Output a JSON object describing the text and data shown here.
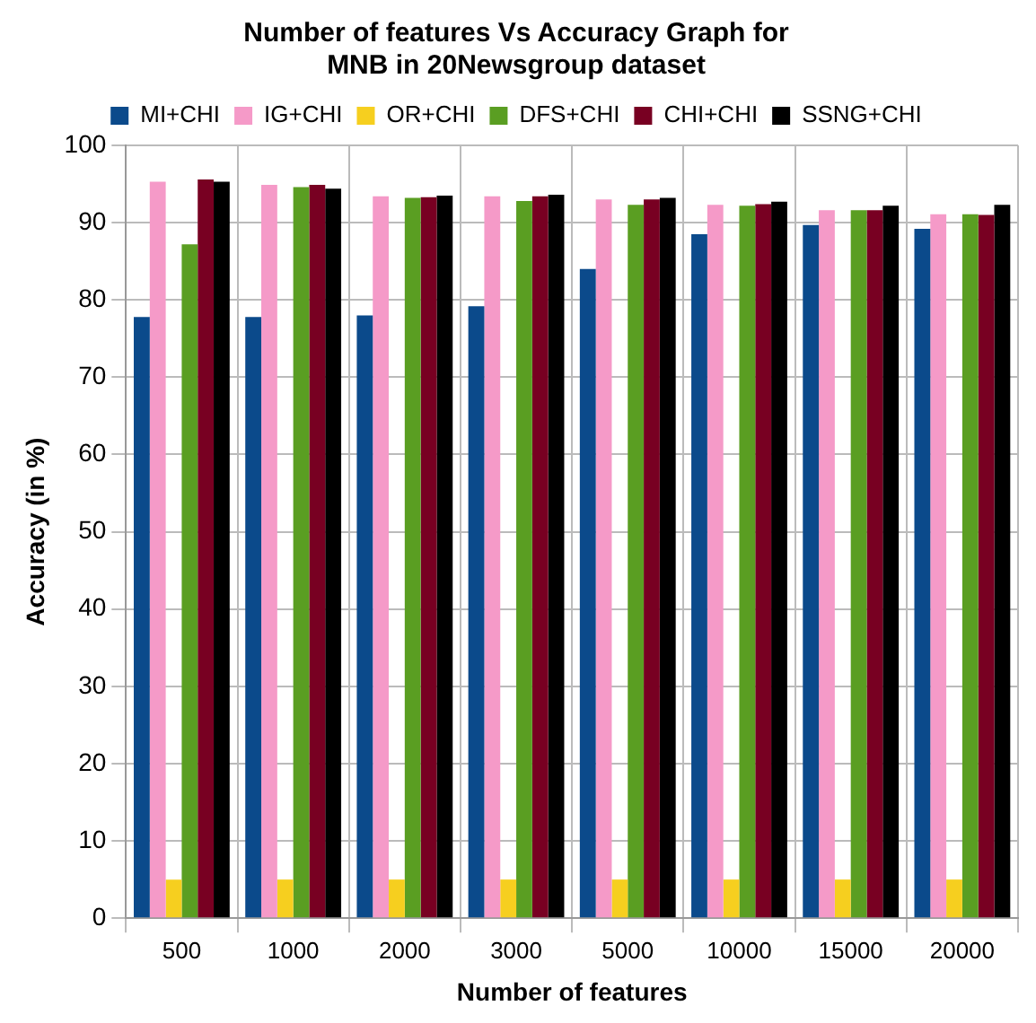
{
  "chart_data": {
    "type": "bar",
    "title": [
      "Number of features Vs Accuracy Graph for",
      "MNB in 20Newsgroup dataset"
    ],
    "xlabel": "Number of features",
    "ylabel": "Accuracy (in %)",
    "categories": [
      "500",
      "1000",
      "2000",
      "3000",
      "5000",
      "10000",
      "15000",
      "20000"
    ],
    "series": [
      {
        "name": "MI+CHI",
        "color": "#0b4a8b",
        "values": [
          77.8,
          77.8,
          78,
          79.2,
          84,
          88.5,
          89.7,
          89.2
        ]
      },
      {
        "name": "IG+CHI",
        "color": "#f59ac8",
        "values": [
          95.3,
          94.9,
          93.4,
          93.4,
          93,
          92.3,
          91.6,
          91.1
        ]
      },
      {
        "name": "OR+CHI",
        "color": "#f6cf1f",
        "values": [
          5,
          5,
          5,
          5,
          5,
          5,
          5,
          5
        ]
      },
      {
        "name": "DFS+CHI",
        "color": "#5a9e22",
        "values": [
          87.2,
          94.6,
          93.2,
          92.8,
          92.3,
          92.2,
          91.6,
          91.1
        ]
      },
      {
        "name": "CHI+CHI",
        "color": "#780022",
        "values": [
          95.6,
          94.9,
          93.3,
          93.4,
          93,
          92.4,
          91.6,
          91
        ]
      },
      {
        "name": "SSNG+CHI",
        "color": "#000000",
        "values": [
          95.3,
          94.4,
          93.5,
          93.6,
          93.2,
          92.7,
          92.2,
          92.3
        ]
      }
    ],
    "ylim": [
      0,
      100
    ],
    "yticks": [
      0,
      10,
      20,
      30,
      40,
      50,
      60,
      70,
      80,
      90,
      100
    ],
    "grid": true,
    "legend": "top"
  }
}
